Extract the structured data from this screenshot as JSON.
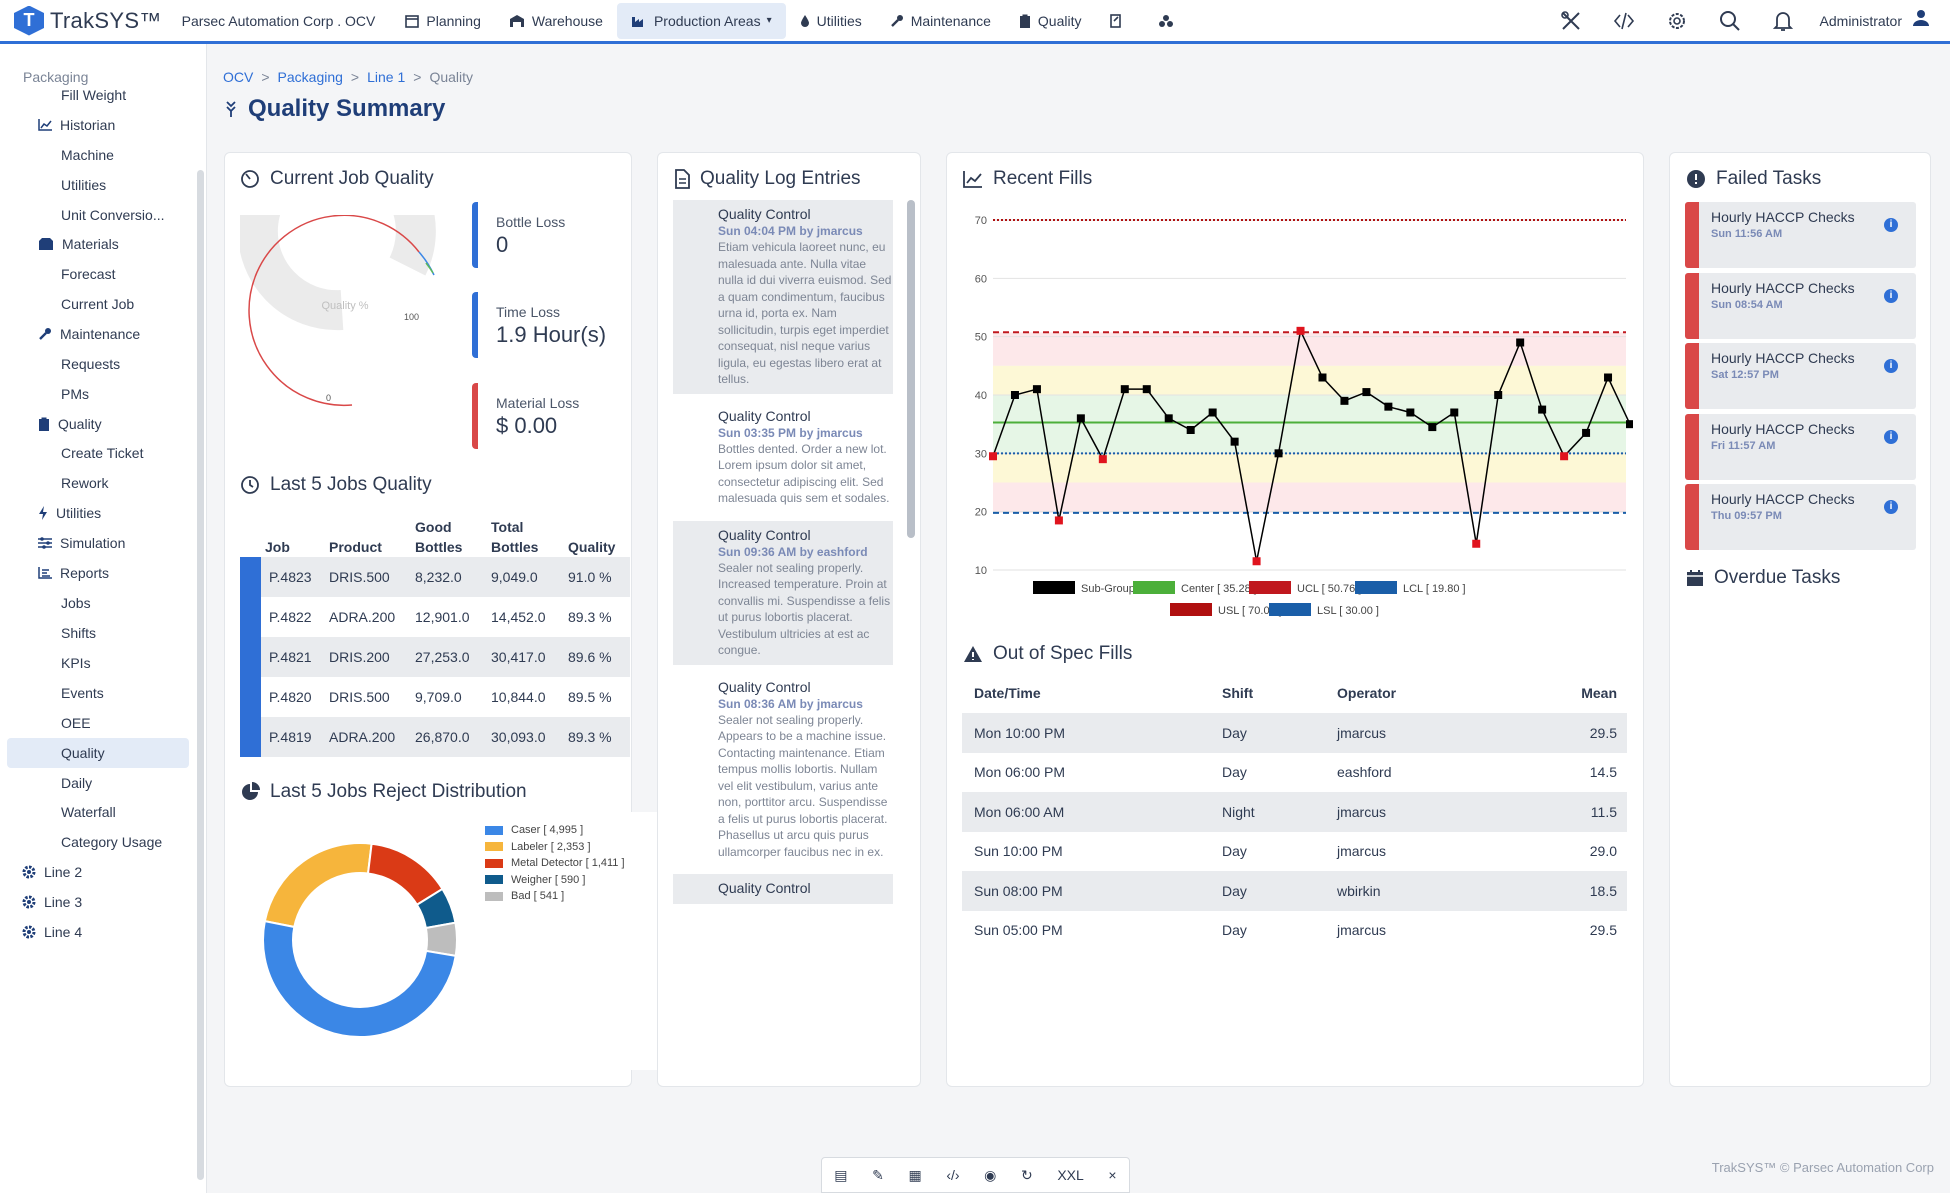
{
  "app": {
    "name": "TrakSYS™",
    "site": "Parsec Automation Corp . OCV"
  },
  "nav": [
    {
      "label": "Planning",
      "icon": "calendar-icon"
    },
    {
      "label": "Warehouse",
      "icon": "warehouse-icon"
    },
    {
      "label": "Production Areas",
      "icon": "factory-icon",
      "active": true
    },
    {
      "label": "Utilities",
      "icon": "drop-icon"
    },
    {
      "label": "Maintenance",
      "icon": "wrench-icon"
    },
    {
      "label": "Quality",
      "icon": "clipboard-icon"
    }
  ],
  "user": "Administrator",
  "sidebar": {
    "title": "Packaging",
    "items": [
      {
        "label": "Fill Weight"
      },
      {
        "label": "Historian"
      },
      {
        "label": "Machine"
      },
      {
        "label": "Utilities"
      },
      {
        "label": "Unit Conversio..."
      },
      {
        "label": "Materials"
      },
      {
        "label": "Forecast"
      },
      {
        "label": "Current Job"
      },
      {
        "label": "Maintenance"
      },
      {
        "label": "Requests"
      },
      {
        "label": "PMs"
      },
      {
        "label": "Quality"
      },
      {
        "label": "Create Ticket"
      },
      {
        "label": "Rework"
      },
      {
        "label": "Utilities"
      },
      {
        "label": "Simulation"
      },
      {
        "label": "Reports"
      },
      {
        "label": "Jobs"
      },
      {
        "label": "Shifts"
      },
      {
        "label": "KPIs"
      },
      {
        "label": "Events"
      },
      {
        "label": "OEE"
      },
      {
        "label": "Quality"
      },
      {
        "label": "Daily"
      },
      {
        "label": "Waterfall"
      },
      {
        "label": "Category Usage"
      },
      {
        "label": "Line 2"
      },
      {
        "label": "Line 3"
      },
      {
        "label": "Line 4"
      }
    ]
  },
  "breadcrumb": [
    "OCV",
    "Packaging",
    "Line 1",
    "Quality"
  ],
  "page_title": "Quality Summary",
  "current_job": {
    "title": "Current Job Quality",
    "gauge_label": "Quality %",
    "gauge_max": "100",
    "gauge_min": "0",
    "tiles": [
      {
        "label": "Bottle Loss",
        "value": "0",
        "color": "#2f6fd6"
      },
      {
        "label": "Time Loss",
        "value": "1.9 Hour(s)",
        "color": "#2f6fd6"
      },
      {
        "label": "Material Loss",
        "value": "$ 0.00",
        "color": "#d94848"
      }
    ]
  },
  "last_jobs": {
    "title": "Last 5 Jobs Quality",
    "headers": [
      "Job",
      "Product",
      "Good Bottles",
      "Total Bottles",
      "Quality"
    ],
    "rows": [
      [
        "P.4823",
        "DRIS.500",
        "8,232.0",
        "9,049.0",
        "91.0 %"
      ],
      [
        "P.4822",
        "ADRA.200",
        "12,901.0",
        "14,452.0",
        "89.3 %"
      ],
      [
        "P.4821",
        "DRIS.200",
        "27,253.0",
        "30,417.0",
        "89.6 %"
      ],
      [
        "P.4820",
        "DRIS.500",
        "9,709.0",
        "10,844.0",
        "89.5 %"
      ],
      [
        "P.4819",
        "ADRA.200",
        "26,870.0",
        "30,093.0",
        "89.3 %"
      ]
    ]
  },
  "reject": {
    "title": "Last 5 Jobs Reject Distribution"
  },
  "log": {
    "title": "Quality Log Entries",
    "entries": [
      {
        "title": "Quality Control",
        "meta": "Sun 04:04 PM by jmarcus",
        "body": "Etiam vehicula laoreet nunc, eu malesuada ante. Nulla vitae nulla id dui viverra euismod. Sed a quam condimentum, faucibus urna id, porta ex. Nam sollicitudin, turpis eget imperdiet consequat, nisl neque varius ligula, eu egestas libero erat at tellus."
      },
      {
        "title": "Quality Control",
        "meta": "Sun 03:35 PM by jmarcus",
        "body": "Bottles dented. Order a new lot. Lorem ipsum dolor sit amet, consectetur adipiscing elit. Sed malesuada quis sem et sodales."
      },
      {
        "title": "Quality Control",
        "meta": "Sun 09:36 AM by eashford",
        "body": "Sealer not sealing properly. Increased temperature. Proin at convallis mi. Suspendisse a felis ut purus lobortis placerat. Vestibulum ultricies at est ac congue."
      },
      {
        "title": "Quality Control",
        "meta": "Sun 08:36 AM by jmarcus",
        "body": "Sealer not sealing properly. Appears to be a machine issue. Contacting maintenance. Etiam tempus mollis lobortis. Nullam vel elit vestibulum, varius ante non, porttitor arcu. Suspendisse a felis ut purus lobortis placerat. Phasellus ut arcu quis purus ullamcorper faucibus nec in ex."
      },
      {
        "title": "Quality Control",
        "meta": "",
        "body": ""
      }
    ]
  },
  "fills": {
    "title": "Recent Fills"
  },
  "chart_data": [
    {
      "type": "line",
      "title": "Recent Fills",
      "ylim": [
        10,
        70
      ],
      "yticks": [
        10,
        20,
        30,
        40,
        50,
        60,
        70
      ],
      "series": [
        {
          "name": "Sub-Groups",
          "values": [
            29.5,
            40,
            41,
            18.5,
            36,
            29,
            41,
            41,
            36,
            34,
            37,
            32,
            11.5,
            30,
            51,
            43,
            39,
            40.5,
            38,
            37,
            34.5,
            37,
            14.5,
            40,
            49,
            37.5,
            29.5,
            33.5,
            43,
            35
          ]
        }
      ],
      "limits": {
        "Center": 35.28,
        "UCL": 50.76,
        "LCL": 19.8,
        "USL": 70.0,
        "LSL": 30.0
      },
      "legend": [
        "Sub-Groups",
        "Center [ 35.28 ]",
        "UCL [ 50.76 ]",
        "LCL [ 19.80 ]",
        "USL [ 70.00 ]",
        "LSL [ 30.00 ]"
      ]
    },
    {
      "type": "pie",
      "title": "Last 5 Jobs Reject Distribution",
      "slices": [
        {
          "name": "Caser",
          "value": 4995,
          "label": "Caser [ 4,995 ]",
          "color": "#3b87e6"
        },
        {
          "name": "Labeler",
          "value": 2353,
          "label": "Labeler [ 2,353 ]",
          "color": "#f6b53c"
        },
        {
          "name": "Metal Detector",
          "value": 1411,
          "label": "Metal Detector [ 1,411 ]",
          "color": "#da3a16"
        },
        {
          "name": "Weigher",
          "value": 590,
          "label": "Weigher [ 590 ]",
          "color": "#0f5b8c"
        },
        {
          "name": "Bad",
          "value": 541,
          "label": "Bad [ 541 ]",
          "color": "#bdbdbd"
        }
      ]
    }
  ],
  "oos": {
    "title": "Out of Spec Fills",
    "headers": [
      "Date/Time",
      "Shift",
      "Operator",
      "Mean"
    ],
    "rows": [
      [
        "Mon 10:00 PM",
        "Day",
        "jmarcus",
        "29.5"
      ],
      [
        "Mon 06:00 PM",
        "Day",
        "eashford",
        "14.5"
      ],
      [
        "Mon 06:00 AM",
        "Night",
        "jmarcus",
        "11.5"
      ],
      [
        "Sun 10:00 PM",
        "Day",
        "jmarcus",
        "29.0"
      ],
      [
        "Sun 08:00 PM",
        "Day",
        "wbirkin",
        "18.5"
      ],
      [
        "Sun 05:00 PM",
        "Day",
        "jmarcus",
        "29.5"
      ]
    ]
  },
  "failed": {
    "title": "Failed Tasks",
    "items": [
      {
        "title": "Hourly HACCP Checks",
        "date": "Sun 11:56 AM"
      },
      {
        "title": "Hourly HACCP Checks",
        "date": "Sun 08:54 AM"
      },
      {
        "title": "Hourly HACCP Checks",
        "date": "Sat 12:57 PM"
      },
      {
        "title": "Hourly HACCP Checks",
        "date": "Fri 11:57 AM"
      },
      {
        "title": "Hourly HACCP Checks",
        "date": "Thu 09:57 PM"
      }
    ]
  },
  "overdue": {
    "title": "Overdue Tasks"
  },
  "toolbar": {
    "size": "XXL"
  },
  "footer": "TrakSYS™ © Parsec Automation Corp"
}
